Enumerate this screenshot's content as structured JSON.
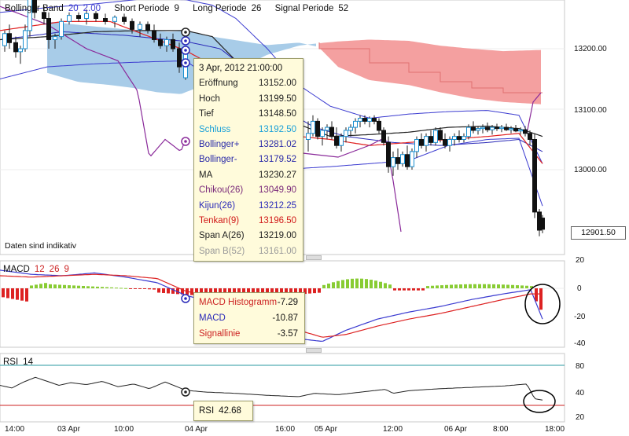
{
  "chart_data": {
    "type": "candlestick",
    "instrument_note": "Daten sind indikativ",
    "price_axis": {
      "ticks": [
        "13200.00",
        "13100.00",
        "13000.00"
      ],
      "last_price_badge": "12901.50"
    },
    "x_tick_labels": [
      "14:00",
      "03 Apr",
      "10:00",
      "04 Apr",
      "16:00",
      "05 Apr",
      "12:00",
      "06 Apr",
      "8:00",
      "18:00"
    ],
    "main_legend": {
      "bollinger": {
        "label": "Bollinger Band",
        "p1": "20",
        "p2": "2.00"
      },
      "short": {
        "label": "Short Periode",
        "value": "9"
      },
      "long": {
        "label": "Long Periode",
        "value": "26"
      },
      "signal": {
        "label": "Signal Periode",
        "value": "52"
      }
    },
    "tooltip": {
      "date": "3 Apr, 2012 21:00:00",
      "rows": [
        {
          "label": "Eröffnung",
          "value": "13152.00",
          "color": "#222222"
        },
        {
          "label": "Hoch",
          "value": "13199.50",
          "color": "#222222"
        },
        {
          "label": "Tief",
          "value": "13148.50",
          "color": "#222222"
        },
        {
          "label": "Schluss",
          "value": "13192.50",
          "color": "#1aa0d8"
        },
        {
          "label": "Bollinger+",
          "value": "13281.02",
          "color": "#2a2aa8"
        },
        {
          "label": "Bollinger-",
          "value": "13179.52",
          "color": "#2a2aa8"
        },
        {
          "label": "MA",
          "value": "13230.27",
          "color": "#222222"
        },
        {
          "label": "Chikou(26)",
          "value": "13049.90",
          "color": "#7a2a7a"
        },
        {
          "label": "Kijun(26)",
          "value": "13212.25",
          "color": "#2a2ab8"
        },
        {
          "label": "Tenkan(9)",
          "value": "13196.50",
          "color": "#d01818"
        },
        {
          "label": "Span A(26)",
          "value": "13219.00",
          "color": "#222222"
        },
        {
          "label": "Span B(52)",
          "value": "13161.00",
          "color": "#9a9a9a"
        }
      ]
    },
    "macd": {
      "legend": {
        "label": "MACD",
        "p1": "12",
        "p2": "26",
        "p3": "9"
      },
      "y_ticks": [
        "20",
        "0",
        "-20",
        "-40"
      ],
      "ylim": [
        -40,
        20
      ],
      "tooltip": [
        {
          "label": "MACD Histogramm",
          "value": "-7.29",
          "color": "#cc2222"
        },
        {
          "label": "MACD",
          "value": "-10.87",
          "color": "#2a2ab8"
        },
        {
          "label": "Signallinie",
          "value": "-3.57",
          "color": "#cc2222"
        }
      ]
    },
    "rsi": {
      "legend": {
        "label": "RSI",
        "p1": "14"
      },
      "y_ticks": [
        "80",
        "40",
        "20"
      ],
      "ylim": [
        0,
        100
      ],
      "tooltip": {
        "label": "RSI",
        "value": "42.68"
      }
    },
    "colors": {
      "cloud_bull": "#a8cce8",
      "cloud_bear": "#f4a0a0",
      "candle_up": "#1a8fd0",
      "candle_down": "#111111",
      "bollinger": "#3a3ad0",
      "ma": "#222222",
      "tenkan": "#e02020",
      "kijun": "#2a2ab8",
      "chikou": "#8a2a9a",
      "hist_pos": "#88cc33",
      "hist_neg": "#dd2222",
      "rsi_upper": "#2a9aa0",
      "rsi_lower": "#cc2222"
    }
  }
}
